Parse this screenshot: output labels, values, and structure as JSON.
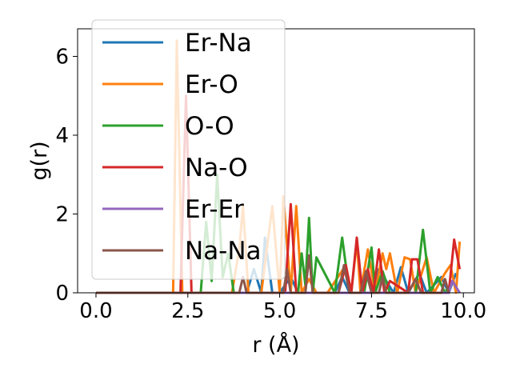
{
  "chart_data": {
    "type": "line",
    "xlabel": "r (Å)",
    "ylabel": "g(r)",
    "xlim": [
      -0.5,
      10.3
    ],
    "ylim": [
      0,
      6.7
    ],
    "xticks": [
      0.0,
      2.5,
      5.0,
      7.5,
      10.0
    ],
    "xtick_labels": [
      "0.0",
      "2.5",
      "5.0",
      "7.5",
      "10.0"
    ],
    "yticks": [
      0,
      2,
      4,
      6
    ],
    "ytick_labels": [
      "0",
      "2",
      "4",
      "6"
    ],
    "grid": false,
    "legend_placement": "top-left",
    "series": [
      {
        "name": "Er-Na",
        "color": "#1f77b4",
        "x": [
          0.0,
          4.1,
          4.3,
          4.5,
          4.6,
          4.8,
          5.0,
          5.3,
          5.5,
          6.5,
          6.7,
          6.9,
          7.5,
          7.7,
          8.1,
          8.3,
          8.5,
          8.8,
          9.0,
          9.4,
          9.6,
          9.8
        ],
        "y": [
          0,
          0,
          0.6,
          0,
          1.4,
          0,
          0,
          0.4,
          0,
          0,
          0.4,
          0,
          0,
          0.6,
          0,
          0.65,
          0,
          0.5,
          0,
          0.4,
          0,
          0.5
        ]
      },
      {
        "name": "Er-O",
        "color": "#ff7f0e",
        "x": [
          0.0,
          2.1,
          2.2,
          2.35,
          3.7,
          3.9,
          4.0,
          4.15,
          4.5,
          4.8,
          5.0,
          5.1,
          5.3,
          5.45,
          5.6,
          5.8,
          6.0,
          6.3,
          6.8,
          6.95,
          7.1,
          7.2,
          7.4,
          7.6,
          7.8,
          7.9,
          8.0,
          8.2,
          8.4,
          8.55,
          8.7,
          9.0,
          9.2,
          9.5,
          9.65,
          9.8,
          9.9
        ],
        "y": [
          0,
          0,
          6.4,
          0,
          0,
          1.1,
          2.2,
          0,
          0,
          2.2,
          0,
          2.45,
          0,
          2.2,
          0,
          0.35,
          0,
          0,
          0.7,
          0,
          1.3,
          0,
          1.1,
          0,
          1.0,
          0.6,
          1.0,
          0,
          0.9,
          0.85,
          0,
          0.9,
          0,
          0.5,
          0.7,
          0,
          1.3
        ]
      },
      {
        "name": "O-O",
        "color": "#2ca02c",
        "x": [
          0.0,
          2.85,
          3.0,
          3.15,
          3.3,
          3.45,
          3.6,
          3.75,
          5.5,
          5.6,
          5.7,
          5.8,
          5.9,
          6.0,
          6.5,
          6.7,
          6.9,
          7.3,
          7.5,
          7.6,
          7.8,
          8.0,
          8.7,
          8.9,
          9.1,
          9.3,
          9.5,
          9.7
        ],
        "y": [
          0,
          0,
          1.8,
          0.3,
          3.0,
          0.4,
          1.0,
          0,
          0,
          1.0,
          0.2,
          1.9,
          0,
          0.9,
          0,
          1.4,
          0,
          0,
          1.15,
          0,
          0.55,
          0,
          0,
          1.6,
          0,
          0.4,
          0,
          0.3
        ]
      },
      {
        "name": "Na-O",
        "color": "#d62728",
        "x": [
          0.0,
          2.3,
          2.45,
          2.6,
          5.15,
          5.3,
          5.45,
          5.9,
          6.6,
          6.8,
          6.95,
          7.1,
          7.25,
          7.4,
          7.55,
          7.7,
          7.85,
          8.0,
          8.5,
          8.6,
          8.75,
          8.9,
          9.6,
          9.75,
          9.9
        ],
        "y": [
          0,
          0,
          5.0,
          0,
          0,
          2.25,
          0,
          0,
          0,
          0.7,
          0,
          1.4,
          0,
          0.6,
          0,
          1.1,
          0,
          0.3,
          0,
          0.85,
          0.85,
          0,
          0,
          1.35,
          0.6
        ]
      },
      {
        "name": "Er-Er",
        "color": "#9467bd",
        "x": [
          0.0,
          9.6,
          9.7,
          9.9
        ],
        "y": [
          0,
          0,
          0.3,
          0
        ]
      },
      {
        "name": "Na-Na",
        "color": "#8c564b",
        "x": [
          0.0,
          3.9,
          4.0,
          4.1,
          5.1,
          5.2,
          5.3,
          5.7,
          5.8,
          5.9,
          6.6,
          6.75,
          6.9,
          7.2,
          7.35,
          7.5,
          7.7,
          7.8,
          7.9,
          8.5,
          8.7,
          8.85,
          9.4,
          9.5,
          9.6
        ],
        "y": [
          0,
          0,
          0.4,
          0,
          0,
          0.6,
          0,
          0,
          0.95,
          0,
          0,
          0.7,
          0,
          0,
          0.55,
          0,
          0,
          0.4,
          0,
          0,
          0.35,
          0,
          0,
          0.35,
          0
        ]
      }
    ]
  }
}
